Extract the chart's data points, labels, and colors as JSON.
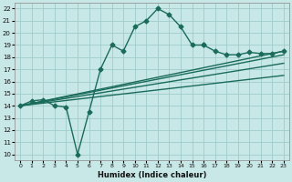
{
  "xlabel": "Humidex (Indice chaleur)",
  "xlim": [
    -0.5,
    23.5
  ],
  "ylim": [
    9.5,
    22.5
  ],
  "xticks": [
    0,
    1,
    2,
    3,
    4,
    5,
    6,
    7,
    8,
    9,
    10,
    11,
    12,
    13,
    14,
    15,
    16,
    17,
    18,
    19,
    20,
    21,
    22,
    23
  ],
  "yticks": [
    10,
    11,
    12,
    13,
    14,
    15,
    16,
    17,
    18,
    19,
    20,
    21,
    22
  ],
  "bg_color": "#c8e8e8",
  "grid_color": "#a0cccc",
  "line_color": "#1a6b5a",
  "line_width": 1.0,
  "marker": "D",
  "marker_size": 2.5,
  "wavy_x": [
    0,
    1,
    2,
    3,
    4,
    5,
    6,
    7,
    8,
    9,
    10,
    11,
    12,
    13,
    14,
    15,
    16
  ],
  "wavy_y": [
    14.0,
    14.4,
    14.5,
    14.0,
    13.9,
    10.0,
    13.5,
    17.0,
    19.0,
    18.5,
    20.5,
    21.0,
    22.0,
    21.5,
    20.5,
    19.0,
    19.0
  ],
  "right_x": [
    16,
    17,
    18,
    19,
    20,
    21,
    22,
    23
  ],
  "right_y": [
    19.0,
    18.5,
    18.2,
    18.2,
    18.4,
    18.3,
    18.3,
    18.5
  ],
  "diag_lines": [
    {
      "x0": 0,
      "y0": 14.0,
      "x1": 23,
      "y1": 18.5
    },
    {
      "x0": 0,
      "y0": 14.0,
      "x1": 23,
      "y1": 18.2
    },
    {
      "x0": 0,
      "y0": 14.0,
      "x1": 23,
      "y1": 17.5
    },
    {
      "x0": 0,
      "y0": 14.0,
      "x1": 23,
      "y1": 16.5
    }
  ]
}
